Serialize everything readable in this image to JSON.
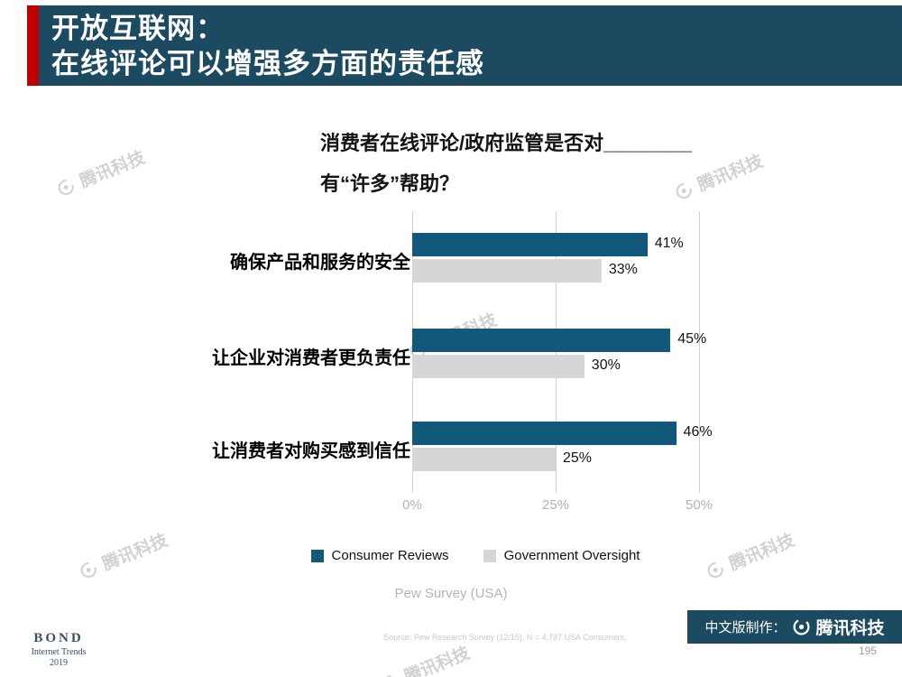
{
  "header": {
    "title_line1": "开放互联网：",
    "title_line2": "在线评论可以增强多方面的责任感",
    "bg_color": "#1c4a61",
    "accent_color": "#c00000"
  },
  "chart_data": {
    "type": "bar",
    "orientation": "horizontal",
    "title_line1": "消费者在线评论/政府监管是否对________",
    "title_line2": "有“许多”帮助？",
    "categories": [
      "确保产品和服务的安全",
      "让企业对消费者更负责任",
      "让消费者对购买感到信任"
    ],
    "series": [
      {
        "name": "Consumer Reviews",
        "color": "#12587b",
        "values": [
          41,
          45,
          46
        ]
      },
      {
        "name": "Government Oversight",
        "color": "#d6d6d6",
        "values": [
          33,
          30,
          25
        ]
      }
    ],
    "value_suffix": "%",
    "xlim": [
      0,
      50
    ],
    "x_ticks": [
      "0%",
      "25%",
      "50%"
    ],
    "grid": "vertical-lines-at-ticks",
    "legend_position": "bottom",
    "footnote": "Pew Survey (USA)"
  },
  "source_line": "Source: Pew Research Survey (12/15).  N = 4,787 USA Consumers.",
  "footer": {
    "bond_name": "BOND",
    "bond_line1": "Internet Trends",
    "bond_line2": "2019",
    "credit_prefix": "中文版制作：",
    "credit_brand": "腾讯科技",
    "page_number": "195"
  },
  "watermark": {
    "text": "腾讯科技"
  }
}
